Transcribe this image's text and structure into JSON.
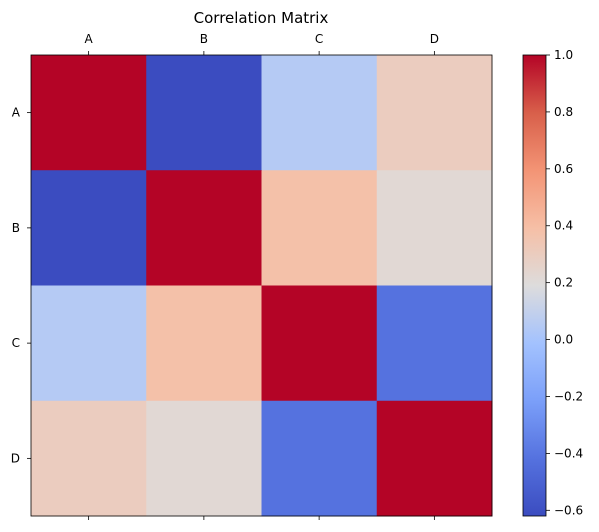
{
  "chart_data": {
    "type": "heatmap",
    "title": "Correlation Matrix",
    "x_categories": [
      "A",
      "B",
      "C",
      "D"
    ],
    "y_categories": [
      "A",
      "B",
      "C",
      "D"
    ],
    "values": [
      [
        1.0,
        -0.62,
        0.05,
        0.3
      ],
      [
        -0.62,
        1.0,
        0.38,
        0.22
      ],
      [
        0.05,
        0.38,
        1.0,
        -0.42
      ],
      [
        0.3,
        0.22,
        -0.42,
        1.0
      ]
    ],
    "colormap": "coolwarm",
    "vmin": -0.62,
    "vmax": 1.0,
    "colorbar_ticks": [
      "1.0",
      "0.8",
      "0.6",
      "0.4",
      "0.2",
      "0.0",
      "−0.2",
      "−0.4",
      "−0.6"
    ],
    "colorbar_tick_values": [
      1.0,
      0.8,
      0.6,
      0.4,
      0.2,
      0.0,
      -0.2,
      -0.4,
      -0.6
    ],
    "x_tick_position": "top",
    "grid": false,
    "colorbar": "right"
  }
}
